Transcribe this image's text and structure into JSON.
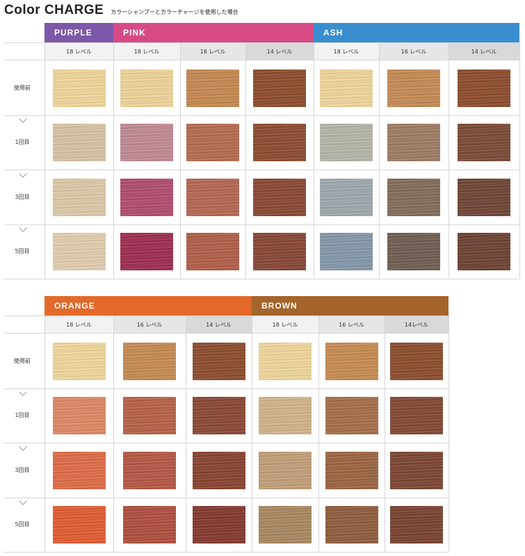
{
  "header": {
    "title": "Color CHARGE",
    "subtitle": "カラーシャンプーとカラーチャージを使用した場合"
  },
  "rows": [
    "使用前",
    "1回目",
    "3回目",
    "5回目"
  ],
  "tables": [
    {
      "brands": [
        {
          "name": "PURPLE",
          "color": "#7d57a8",
          "span": 1
        },
        {
          "name": "PINK",
          "color": "#d64b86",
          "span": 3
        },
        {
          "name": "ASH",
          "color": "#3a8ed0",
          "span": 3
        }
      ],
      "columns": [
        {
          "label": "18 レベル",
          "bg": "#f2f2f2",
          "swatches": [
            "#f1d799",
            "#d9c4a6",
            "#dfcaa9",
            "#e3cfaf"
          ]
        },
        {
          "label": "18 レベル",
          "bg": "#f2f2f2",
          "swatches": [
            "#f0d59a",
            "#c28993",
            "#b14a6e",
            "#9e2a4e"
          ]
        },
        {
          "label": "16 レベル",
          "bg": "#e6e6e6",
          "swatches": [
            "#c5884f",
            "#b56a4e",
            "#b5654f",
            "#b15c46"
          ]
        },
        {
          "label": "14 レベル",
          "bg": "#d9d9d9",
          "swatches": [
            "#8c4a2a",
            "#8b4a2d",
            "#8a4530",
            "#874432"
          ]
        },
        {
          "label": "18 レベル",
          "bg": "#f2f2f2",
          "swatches": [
            "#f0d69b",
            "#b5b5a8",
            "#9ea9ae",
            "#8398aa"
          ]
        },
        {
          "label": "16 レベル",
          "bg": "#e6e6e6",
          "swatches": [
            "#c68a52",
            "#9e7b63",
            "#826b58",
            "#6e5c4f"
          ]
        },
        {
          "label": "14 レベル",
          "bg": "#d9d9d9",
          "swatches": [
            "#8c4a2a",
            "#7a4733",
            "#6e4232",
            "#6b3f2f"
          ]
        }
      ]
    },
    {
      "brands": [
        {
          "name": "ORANGE",
          "color": "#e3692a",
          "span": 3
        },
        {
          "name": "BROWN",
          "color": "#a4642a",
          "span": 3
        }
      ],
      "columns": [
        {
          "label": "18 レベル",
          "bg": "#f2f2f2",
          "swatches": [
            "#f2d89b",
            "#e08763",
            "#e06a45",
            "#e35a2f"
          ]
        },
        {
          "label": "16 レベル",
          "bg": "#e6e6e6",
          "swatches": [
            "#c68a50",
            "#b85f45",
            "#b65543",
            "#b04c3b"
          ]
        },
        {
          "label": "14 レベル",
          "bg": "#d9d9d9",
          "swatches": [
            "#8c4a2a",
            "#8a4530",
            "#88402e",
            "#83362c"
          ]
        },
        {
          "label": "18 レベル",
          "bg": "#f2f2f2",
          "swatches": [
            "#f1d79b",
            "#d3b48a",
            "#c29e78",
            "#a9875f"
          ]
        },
        {
          "label": "16 レベル",
          "bg": "#e6e6e6",
          "swatches": [
            "#c78a50",
            "#a66d45",
            "#9b633f",
            "#8f5a3a"
          ]
        },
        {
          "label": "14レベル",
          "bg": "#d9d9d9",
          "swatches": [
            "#8c4a2a",
            "#824530",
            "#7b4330",
            "#78402d"
          ]
        }
      ]
    }
  ]
}
